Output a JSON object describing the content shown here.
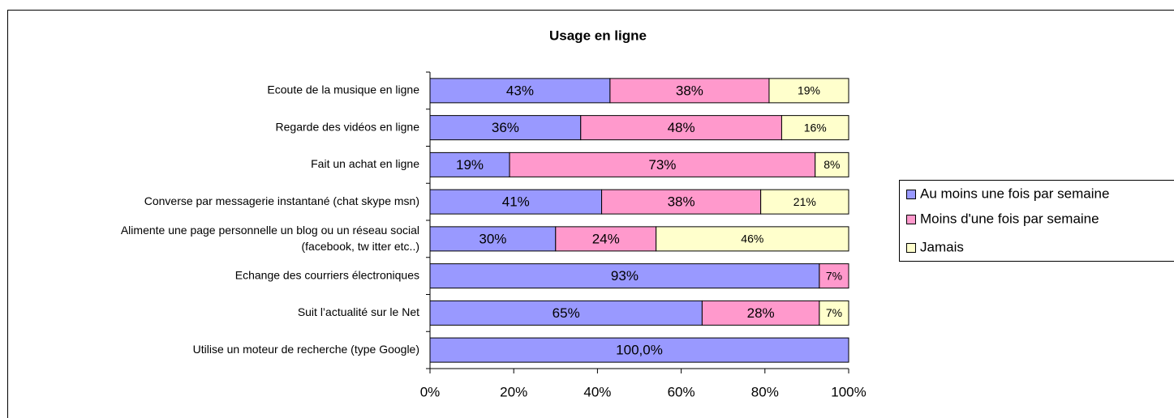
{
  "chart_data": {
    "type": "stacked-barh",
    "title": "Usage en ligne",
    "categories": [
      "Ecoute de la musique en ligne",
      "Regarde des vidéos en ligne",
      "Fait un achat en ligne",
      "Converse par messagerie instantané (chat skype msn)",
      "Alimente une page personnelle un blog ou un réseau social\n(facebook, tw itter etc..)",
      "Echange des courriers électroniques",
      "Suit l’actualité sur le Net",
      "Utilise un moteur de recherche (type Google)"
    ],
    "series": [
      {
        "name": "Au moins une fois par semaine",
        "color": "#9999ff",
        "values": [
          43,
          36,
          19,
          41,
          30,
          93,
          65,
          100
        ],
        "value_labels": [
          "43%",
          "36%",
          "19%",
          "41%",
          "30%",
          "93%",
          "65%",
          "100,0%"
        ]
      },
      {
        "name": "Moins d'une fois par semaine",
        "color": "#ff99cc",
        "values": [
          38,
          48,
          73,
          38,
          24,
          7,
          28,
          null
        ],
        "value_labels": [
          "38%",
          "48%",
          "73%",
          "38%",
          "24%",
          "7%",
          "28%",
          null
        ]
      },
      {
        "name": "Jamais",
        "color": "#ffffcc",
        "values": [
          19,
          16,
          8,
          21,
          46,
          null,
          7,
          null
        ],
        "value_labels": [
          "19%",
          "16%",
          "8%",
          "21%",
          "46%",
          null,
          "7%",
          null
        ]
      }
    ],
    "xlim": [
      0,
      100
    ],
    "xticks": [
      {
        "value": 0,
        "label": "0%"
      },
      {
        "value": 20,
        "label": "20%"
      },
      {
        "value": 40,
        "label": "40%"
      },
      {
        "value": 60,
        "label": "60%"
      },
      {
        "value": 80,
        "label": "80%"
      },
      {
        "value": 100,
        "label": "100%"
      }
    ],
    "legend": "right"
  }
}
